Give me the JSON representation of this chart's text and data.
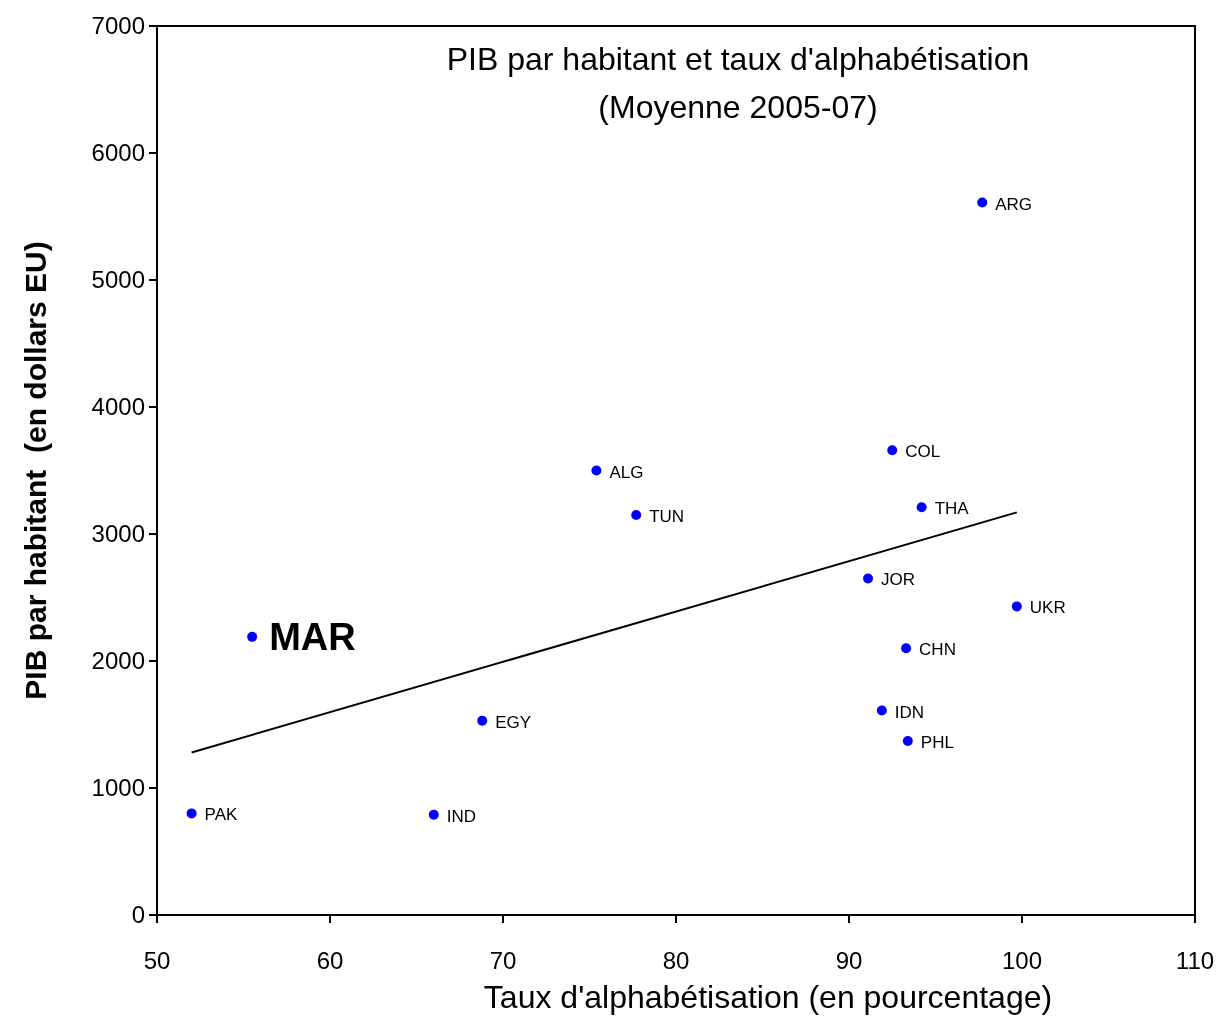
{
  "chart_data": {
    "type": "scatter",
    "title": "PIB par habitant et taux d'alphabétisation",
    "subtitle": "(Moyenne 2005-07)",
    "xlabel": "Taux d'alphabétisation (en pourcentage)",
    "ylabel": "PIB par habitant  (en dollars EU)",
    "xlim": [
      50,
      110
    ],
    "xticks": [
      50,
      60,
      70,
      80,
      90,
      100,
      110
    ],
    "ylim": [
      0,
      7000
    ],
    "yticks": [
      0,
      1000,
      2000,
      3000,
      4000,
      5000,
      6000,
      7000
    ],
    "series": [
      {
        "color": "#0000ff",
        "marker": "circle",
        "x": [
          52.0,
          55.5,
          66.0,
          68.8,
          75.4,
          77.7,
          91.1,
          92.5,
          91.9,
          93.3,
          93.4,
          94.2,
          97.7,
          99.7
        ],
        "values": [
          800,
          2190,
          790,
          1530,
          3500,
          3150,
          2650,
          3660,
          1610,
          2100,
          1370,
          3210,
          5610,
          2430
        ],
        "value_labels": [
          "PAK",
          null,
          "IND",
          "EGY",
          "ALG",
          "TUN",
          "JOR",
          "COL",
          "IDN",
          "CHN",
          "PHL",
          "THA",
          "ARG",
          "UKR"
        ]
      },
      {
        "type": "line",
        "color": "#000000",
        "marker": "none",
        "line_style": "solid",
        "x": [
          52.0,
          99.7
        ],
        "values": [
          1280,
          3170
        ]
      }
    ],
    "annotations": [
      {
        "text": "MAR",
        "x": 55.5,
        "y": 2190
      }
    ]
  }
}
